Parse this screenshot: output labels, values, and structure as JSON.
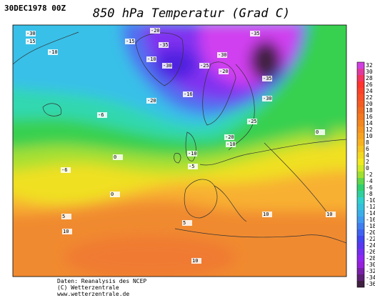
{
  "header": {
    "date": "30DEC1978 00Z",
    "title": "850 hPa Temperatur (Grad C)"
  },
  "colorbar": {
    "labels": [
      32,
      30,
      28,
      26,
      24,
      22,
      20,
      18,
      16,
      14,
      12,
      10,
      8,
      6,
      4,
      2,
      0,
      -2,
      -4,
      -6,
      -8,
      -10,
      -12,
      -14,
      -16,
      -18,
      -20,
      -22,
      -24,
      -26,
      -28,
      -30,
      -32,
      -34,
      -36
    ]
  },
  "map_labels": [
    "-30",
    "-15",
    "-10",
    "-15",
    "-10",
    "-20",
    "-35",
    "-30",
    "-25",
    "-30",
    "-35",
    "-20",
    "-35",
    "-16",
    "-20",
    "-30",
    "-6",
    "-25",
    "-20",
    "-10",
    "-10",
    "-5",
    "-6",
    "0",
    "0",
    "0",
    "5",
    "10",
    "5",
    "10",
    "10",
    "10"
  ],
  "footer": {
    "lines": [
      "Daten: Reanalysis des NCEP",
      "(C) Wetterzentrale",
      "www.wetterzentrale.de"
    ]
  }
}
